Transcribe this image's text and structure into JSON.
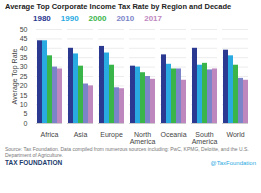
{
  "chart_data": {
    "type": "bar",
    "title": "Average Top Corporate Income Tax Rate by Region and Decade",
    "ylabel": "Average Top Rate",
    "categories": [
      "Africa",
      "Asia",
      "Europe",
      "North\nAmerica",
      "Oceania",
      "South\nAmerica",
      "World"
    ],
    "series": [
      {
        "name": "1980",
        "color": "#2b3990",
        "values": [
          44,
          40,
          41,
          30.5,
          36.5,
          40,
          39
        ]
      },
      {
        "name": "1990",
        "color": "#29abe2",
        "values": [
          44,
          37,
          37.5,
          30,
          31.5,
          31,
          36
        ]
      },
      {
        "name": "2000",
        "color": "#39b54a",
        "values": [
          36,
          30.5,
          31,
          27,
          29,
          32,
          31
        ]
      },
      {
        "name": "2010",
        "color": "#7b84c9",
        "values": [
          30,
          21,
          19,
          25,
          29,
          28.5,
          24
        ]
      },
      {
        "name": "2017",
        "color": "#be87be",
        "values": [
          29,
          20,
          18.5,
          23.5,
          23,
          29,
          23
        ]
      }
    ],
    "ylim": [
      0,
      50
    ],
    "yticks": [
      0,
      5,
      10,
      15,
      20,
      25,
      30,
      35,
      40,
      45,
      50
    ],
    "grid": true,
    "legend": "top-left",
    "annotations": [
      {
        "text": "Source: Tax Foundation. Data compiled from numerous sources including: PwC, KPMG, Deloitte, and the U.S. Department of Agriculture."
      },
      {
        "text": "TAX FOUNDATION",
        "color": "#1a3a6b"
      },
      {
        "text": "@TaxFoundation",
        "color": "#29abe2"
      }
    ]
  }
}
